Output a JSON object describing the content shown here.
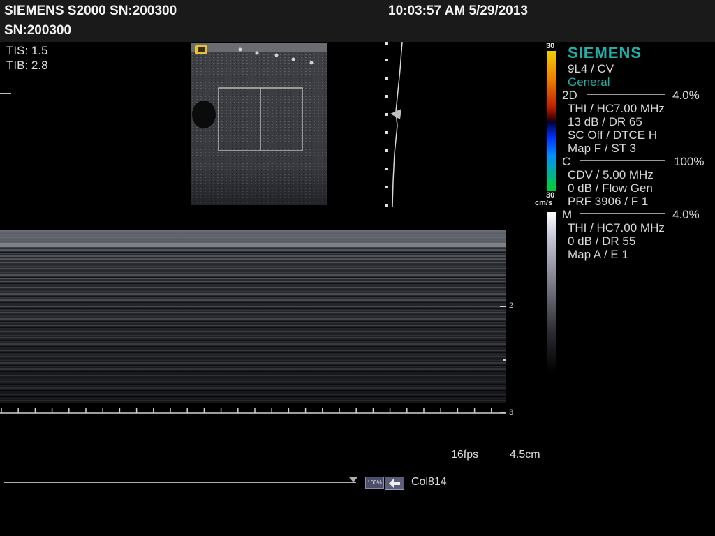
{
  "header": {
    "title": "SIEMENS S2000 SN:200300",
    "serial": "SN:200300",
    "datetime": "10:03:57 AM 5/29/2013"
  },
  "thermal": {
    "tis": "TIS: 1.5",
    "tib": "TIB: 2.8"
  },
  "colorbar": {
    "top_label": "30",
    "bottom_label": "30",
    "unit": "cm/s"
  },
  "panel": {
    "brand": "SIEMENS",
    "transducer": "9L4 / CV",
    "preset": "General",
    "mode2d": {
      "label": "2D",
      "value": "4.0%",
      "lines": [
        "THI / HC7.00 MHz",
        "13 dB / DR 65",
        "SC Off / DTCE H",
        "Map F / ST 3"
      ]
    },
    "modeC": {
      "label": "C",
      "value": "100%",
      "lines": [
        "CDV / 5.00 MHz",
        "0 dB / Flow Gen",
        "PRF 3906 / F 1"
      ]
    },
    "modeM": {
      "label": "M",
      "value": "4.0%",
      "lines": [
        "THI / HC7.00 MHz",
        "0 dB / DR 55",
        "Map A / E 1"
      ]
    }
  },
  "mmode": {
    "depth_mark_2": "2",
    "depth_mark_3": "3"
  },
  "footer": {
    "fps": "16fps",
    "depth": "4.5cm",
    "zoom_badge": "100%",
    "colormap": "Col814"
  },
  "colors": {
    "teal": "#1fb0a8",
    "header_bg": "#1a1a1a"
  }
}
